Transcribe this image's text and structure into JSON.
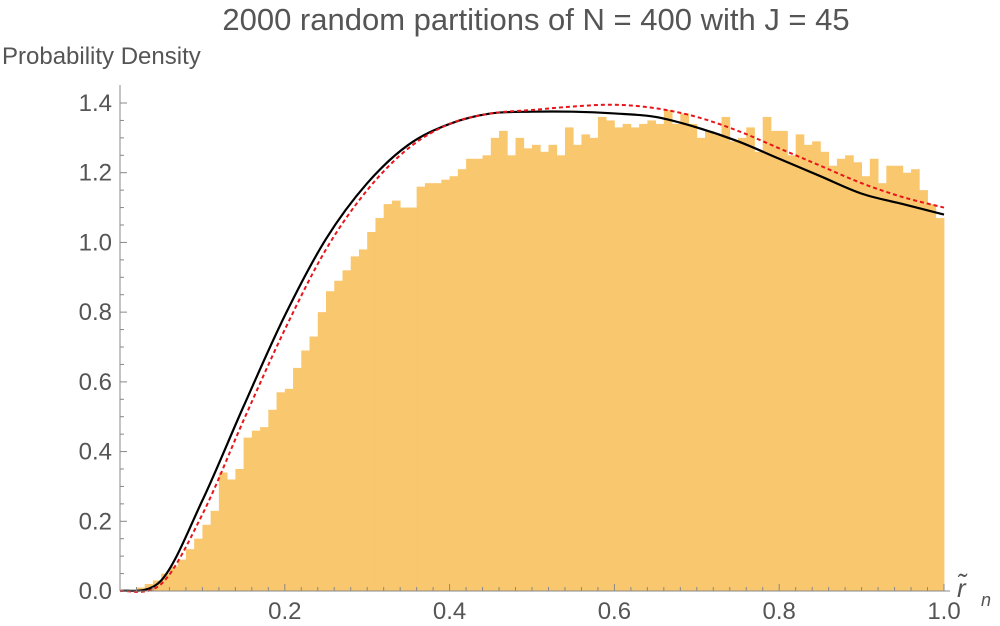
{
  "chart_data": {
    "type": "bar",
    "title": "2000 random partitions of N = 400 with J = 45",
    "ylabel": "Probability Density",
    "xlabel": "r̃",
    "xlabel_subscript": "n",
    "xlim": [
      0.0,
      1.0
    ],
    "ylim": [
      0.0,
      1.4
    ],
    "x_ticks": [
      0.2,
      0.4,
      0.6,
      0.8,
      1.0
    ],
    "x_tick_labels": [
      "0.2",
      "0.4",
      "0.6",
      "0.8",
      "1.0"
    ],
    "y_ticks": [
      0.0,
      0.2,
      0.4,
      0.6,
      0.8,
      1.0,
      1.2,
      1.4
    ],
    "y_tick_labels": [
      "0.0",
      "0.2",
      "0.4",
      "0.6",
      "0.8",
      "1.0",
      "1.2",
      "1.4"
    ],
    "grid": false,
    "histogram": {
      "bin_width": 0.01,
      "bin_start": 0.0,
      "color": "#F9C76E",
      "values": [
        0.0,
        0.0,
        0.01,
        0.02,
        0.03,
        0.05,
        0.07,
        0.09,
        0.12,
        0.15,
        0.19,
        0.23,
        0.34,
        0.32,
        0.35,
        0.44,
        0.46,
        0.47,
        0.52,
        0.57,
        0.58,
        0.64,
        0.69,
        0.73,
        0.8,
        0.86,
        0.89,
        0.92,
        0.96,
        0.98,
        1.03,
        1.07,
        1.11,
        1.12,
        1.1,
        1.1,
        1.16,
        1.17,
        1.17,
        1.18,
        1.19,
        1.21,
        1.24,
        1.24,
        1.25,
        1.3,
        1.32,
        1.25,
        1.3,
        1.27,
        1.28,
        1.26,
        1.28,
        1.25,
        1.33,
        1.28,
        1.31,
        1.3,
        1.36,
        1.35,
        1.33,
        1.34,
        1.33,
        1.34,
        1.35,
        1.34,
        1.38,
        1.34,
        1.37,
        1.34,
        1.3,
        1.32,
        1.31,
        1.36,
        1.29,
        1.3,
        1.33,
        1.26,
        1.36,
        1.32,
        1.32,
        1.25,
        1.31,
        1.28,
        1.29,
        1.26,
        1.22,
        1.24,
        1.25,
        1.23,
        1.19,
        1.24,
        1.17,
        1.22,
        1.22,
        1.2,
        1.21,
        1.15,
        1.11,
        1.07
      ]
    },
    "series": [
      {
        "style": "solid",
        "color": "#000000",
        "x": [
          0.0,
          0.05,
          0.1,
          0.15,
          0.2,
          0.25,
          0.3,
          0.35,
          0.4,
          0.45,
          0.5,
          0.55,
          0.6,
          0.65,
          0.7,
          0.75,
          0.8,
          0.85,
          0.9,
          0.95,
          1.0
        ],
        "y": [
          0.0,
          0.03,
          0.26,
          0.53,
          0.79,
          1.01,
          1.17,
          1.28,
          1.34,
          1.37,
          1.375,
          1.375,
          1.37,
          1.36,
          1.33,
          1.29,
          1.24,
          1.19,
          1.14,
          1.11,
          1.08
        ]
      },
      {
        "style": "dashed",
        "color": "#E8141B",
        "x": [
          0.0,
          0.05,
          0.1,
          0.15,
          0.2,
          0.25,
          0.3,
          0.35,
          0.4,
          0.45,
          0.5,
          0.55,
          0.6,
          0.65,
          0.7,
          0.75,
          0.8,
          0.85,
          0.9,
          0.95,
          1.0
        ],
        "y": [
          0.0,
          0.02,
          0.22,
          0.49,
          0.75,
          0.98,
          1.15,
          1.27,
          1.34,
          1.37,
          1.38,
          1.39,
          1.395,
          1.385,
          1.36,
          1.32,
          1.27,
          1.22,
          1.17,
          1.13,
          1.1
        ]
      }
    ]
  }
}
